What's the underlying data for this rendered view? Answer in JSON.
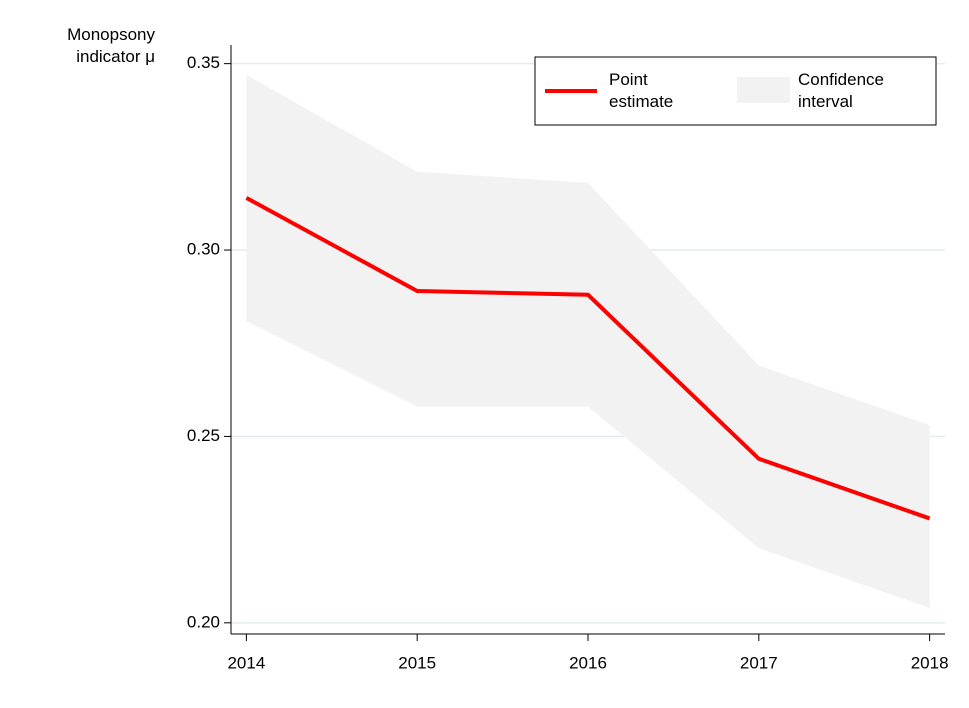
{
  "chart_data": {
    "type": "line",
    "y_label": "Monopsony indicator μ",
    "x": [
      2014,
      2015,
      2016,
      2017,
      2018
    ],
    "series": [
      {
        "name": "Point estimate",
        "color": "#ff0000",
        "values": [
          0.314,
          0.289,
          0.288,
          0.244,
          0.228
        ]
      },
      {
        "name": "Confidence interval",
        "color": "#f2f2f2",
        "upper": [
          0.347,
          0.321,
          0.318,
          0.269,
          0.253
        ],
        "lower": [
          0.281,
          0.258,
          0.258,
          0.22,
          0.204
        ]
      }
    ],
    "xlim": [
      2013.91,
      2018.09
    ],
    "xticks": [
      2014,
      2015,
      2016,
      2017,
      2018
    ],
    "ylim": [
      0.197,
      0.355
    ],
    "yticks": [
      {
        "value": 0.2,
        "label": "0.20"
      },
      0.25,
      {
        "value": 0.3,
        "label": "0.30"
      },
      0.35
    ],
    "grid": true,
    "legend": "top right"
  }
}
